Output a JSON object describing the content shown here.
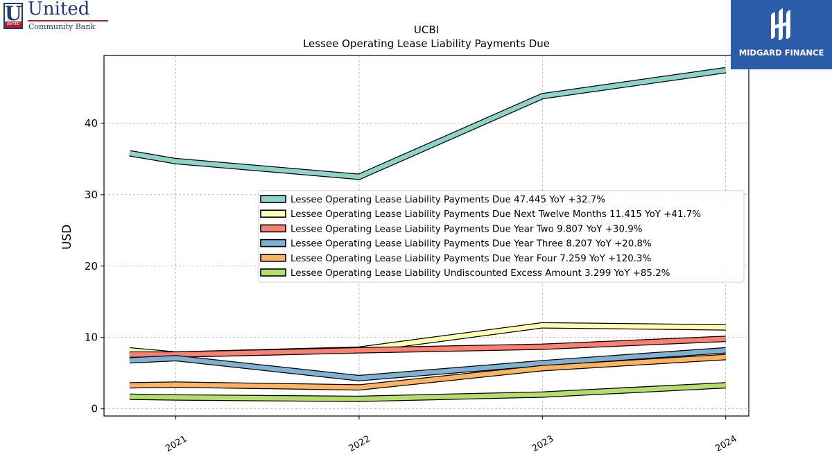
{
  "brand_left": {
    "name": "United",
    "sub": "Community Bank",
    "mark_letter": "U",
    "mark_strip": "UNITED"
  },
  "brand_right": {
    "name": "MIDGARD FINANCE"
  },
  "chart_data": {
    "type": "line",
    "ticker": "UCBI",
    "title": "Lessee Operating Lease Liability Payments Due",
    "ylabel": "USD",
    "xlabel": "",
    "ylim": [
      -1,
      49.5
    ],
    "yticks": [
      0,
      10,
      20,
      30,
      40
    ],
    "x": [
      "2020-09-30",
      "2020-12-31",
      "2021-12-31",
      "2022-12-31",
      "2023-12-31"
    ],
    "xticks": [
      {
        "label": "2021",
        "date": "2020-12-31"
      },
      {
        "label": "2022",
        "date": "2021-12-31"
      },
      {
        "label": "2023",
        "date": "2022-12-31"
      },
      {
        "label": "2024",
        "date": "2023-12-31"
      }
    ],
    "xlim": [
      "2020-08-10",
      "2024-02-15"
    ],
    "grid": true,
    "legend_position": "center-right",
    "series": [
      {
        "name": "Lessee Operating Lease Liability Payments Due",
        "legend": "Lessee Operating Lease Liability Payments Due  47.445 YoY +32.7%",
        "color": "#8dd3c7",
        "values": [
          35.8,
          34.7,
          32.5,
          43.8,
          47.445
        ]
      },
      {
        "name": "Lessee Operating Lease Liability Payments Due Next Twelve Months",
        "legend": "Lessee Operating Lease Liability Payments Due Next Twelve Months  11.415 YoY +41.7%",
        "color": "#ffffb3",
        "values": [
          8.2,
          7.6,
          8.3,
          11.7,
          11.415
        ]
      },
      {
        "name": "Lessee Operating Lease Liability Payments Due Year Two",
        "legend": "Lessee Operating Lease Liability Payments Due Year Two  9.807 YoY +30.9%",
        "color": "#fb8072",
        "values": [
          7.6,
          7.6,
          8.2,
          8.7,
          9.807
        ]
      },
      {
        "name": "Lessee Operating Lease Liability Payments Due Year Three",
        "legend": "Lessee Operating Lease Liability Payments Due Year Three  8.207 YoY +20.8%",
        "color": "#80b1d3",
        "values": [
          6.8,
          7.1,
          4.3,
          6.4,
          8.207
        ]
      },
      {
        "name": "Lessee Operating Lease Liability Payments Due Year Four",
        "legend": "Lessee Operating Lease Liability Payments Due Year Four  7.259 YoY +120.3%",
        "color": "#fdb462",
        "values": [
          3.3,
          3.4,
          3.0,
          5.7,
          7.259
        ]
      },
      {
        "name": "Lessee Operating Lease Liability Undiscounted Excess Amount",
        "legend": "Lessee Operating Lease Liability Undiscounted Excess Amount  3.299 YoY +85.2%",
        "color": "#b3de69",
        "values": [
          1.7,
          1.6,
          1.4,
          2.0,
          3.299
        ]
      }
    ]
  }
}
